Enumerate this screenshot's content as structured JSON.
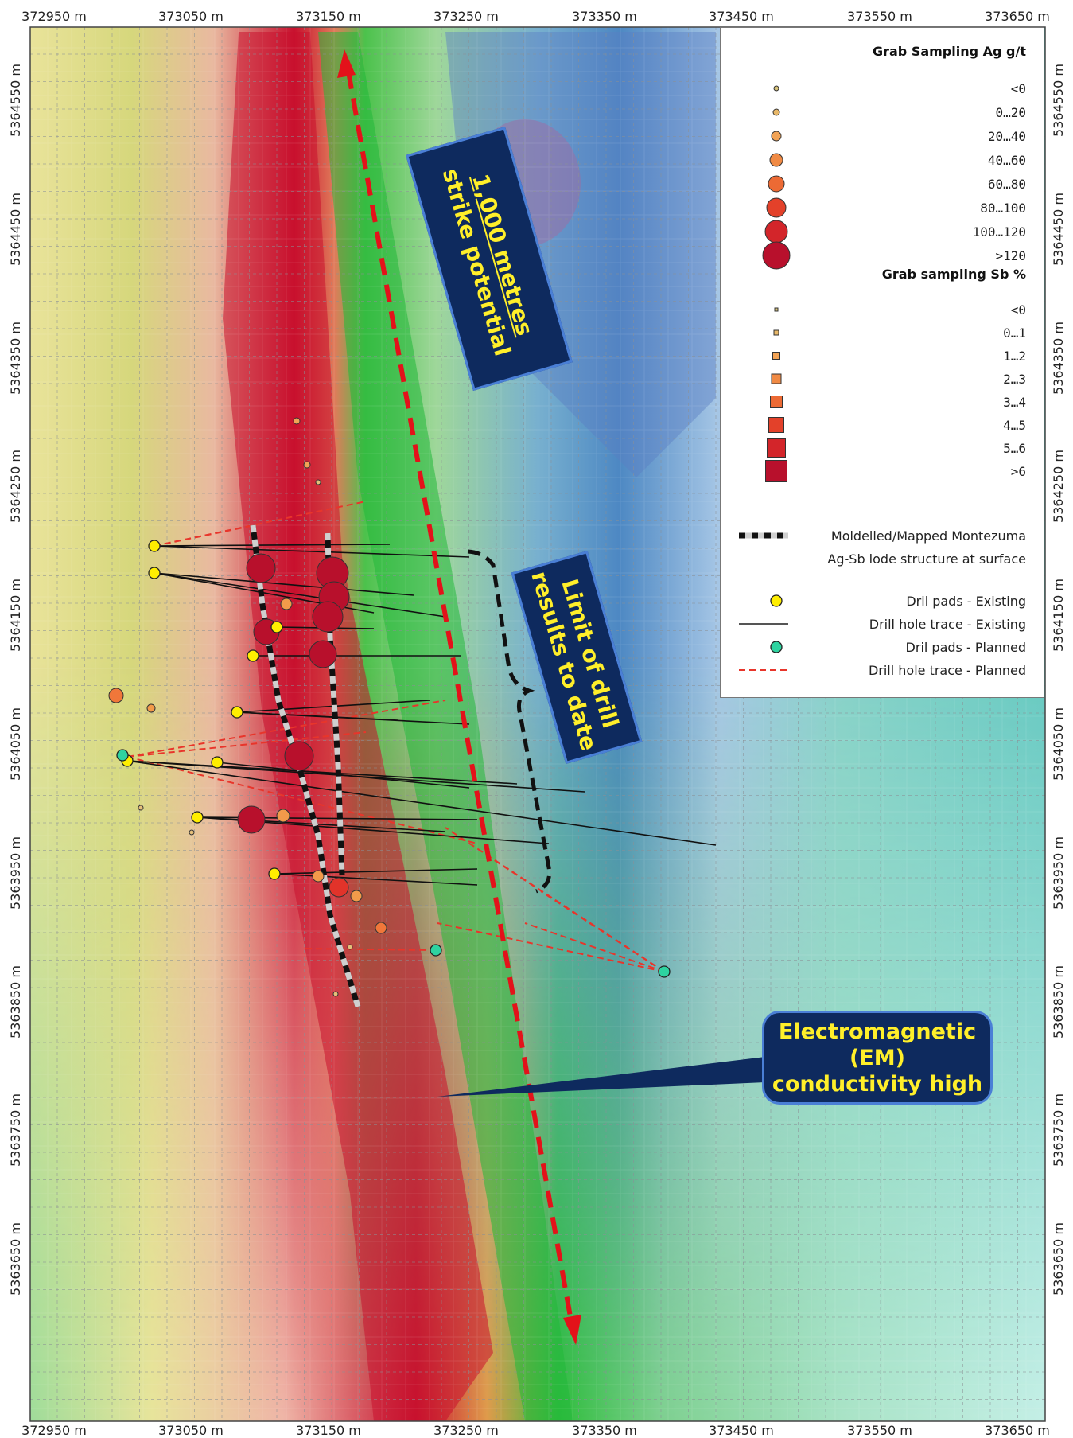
{
  "map": {
    "x_ticks": [
      "372950 m",
      "373050 m",
      "373150 m",
      "373250 m",
      "373350 m",
      "373450 m",
      "373550 m",
      "373650 m"
    ],
    "y_ticks": [
      "5364550 m",
      "5364450 m",
      "5364350 m",
      "5364250 m",
      "5364150 m",
      "5364050 m",
      "5363950 m",
      "5363850 m",
      "5363750 m",
      "5363650 m"
    ],
    "colors": {
      "em_high": "#c8102e",
      "em_low": "#2e7bd1",
      "strike_arrow": "#e3121a",
      "existing_trace": "#111111",
      "planned_trace": "#e8352b",
      "pad_existing": "#ffee00",
      "pad_planned": "#2ed3a0",
      "callout_bg": "#0e2a5e",
      "callout_text": "#ffef2a"
    }
  },
  "callouts": {
    "strike": {
      "line1_underlined": "1,000 metres",
      "line2": "strike potential"
    },
    "limit": {
      "line1": "Limit of drill",
      "line2": "results to date"
    },
    "em": {
      "line1": "Electromagnetic",
      "line2": "(EM)",
      "line3": "conductivity high"
    }
  },
  "legend": {
    "ag_title": "Grab Sampling Ag g/t",
    "ag_classes": [
      "<0",
      "0…20",
      "20…40",
      "40…60",
      "60…80",
      "80…100",
      "100…120",
      ">120"
    ],
    "sb_title": "Grab sampling Sb %",
    "sb_classes": [
      "<0",
      "0…1",
      "1…2",
      "2…3",
      "3…4",
      "4…5",
      "5…6",
      ">6"
    ],
    "structure_line1": "Moldelled/Mapped Montezuma",
    "structure_line2": "Ag-Sb lode structure at surface",
    "pads_existing": "Dril pads - Existing",
    "trace_existing": "Drill hole trace - Existing",
    "pads_planned": "Dril pads - Planned",
    "trace_planned": "Drill hole trace - Planned"
  }
}
